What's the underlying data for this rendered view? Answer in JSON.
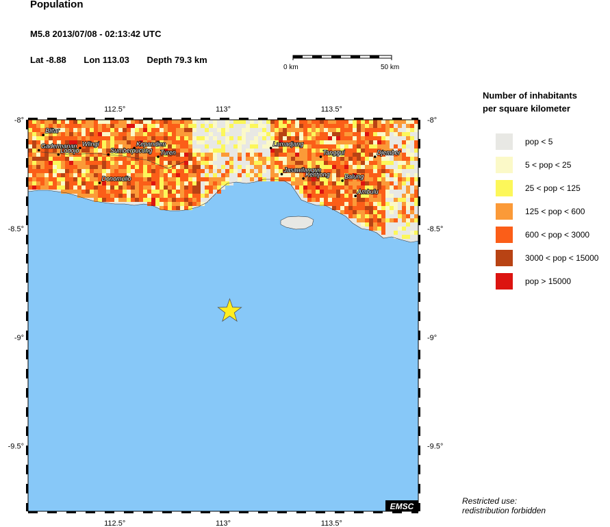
{
  "header": {
    "title": "Population",
    "event": "M5.8  2013/07/08 - 02:13:42 UTC",
    "lat": "Lat -8.88",
    "lon": "Lon 113.03",
    "depth": "Depth  79.3 km"
  },
  "scale_bar": {
    "left_label": "0 km",
    "right_label": "50 km"
  },
  "map": {
    "lon_ticks": [
      "112.5°",
      "113°",
      "113.5°"
    ],
    "lat_ticks": [
      "-8°",
      "-8.5°",
      "-9°",
      "-9.5°"
    ],
    "extent": {
      "lon": [
        112.1,
        113.9
      ],
      "lat": [
        -9.8,
        -8.0
      ]
    },
    "epicenter": {
      "lat": -8.88,
      "lon": 113.03
    },
    "cities": [
      {
        "name": "Blitar",
        "lon": 112.17,
        "lat": -8.07
      },
      {
        "name": "Gadermanan",
        "lon": 112.15,
        "lat": -8.14
      },
      {
        "name": "Lodojo",
        "lon": 112.24,
        "lat": -8.16
      },
      {
        "name": "Wlingi",
        "lon": 112.34,
        "lat": -8.13
      },
      {
        "name": "Sumberpucung",
        "lon": 112.47,
        "lat": -8.16
      },
      {
        "name": "Kepandien",
        "lon": 112.59,
        "lat": -8.13
      },
      {
        "name": "Turen",
        "lon": 112.7,
        "lat": -8.17
      },
      {
        "name": "Donomulio",
        "lon": 112.43,
        "lat": -8.29
      },
      {
        "name": "Lumadjang",
        "lon": 113.22,
        "lat": -8.13
      },
      {
        "name": "Tanggul",
        "lon": 113.45,
        "lat": -8.17
      },
      {
        "name": "Djember",
        "lon": 113.7,
        "lat": -8.17
      },
      {
        "name": "Jasawilangun",
        "lon": 113.27,
        "lat": -8.25
      },
      {
        "name": "Kentjong",
        "lon": 113.37,
        "lat": -8.27
      },
      {
        "name": "Balung",
        "lon": 113.55,
        "lat": -8.28
      },
      {
        "name": "Ambulu",
        "lon": 113.61,
        "lat": -8.35
      }
    ],
    "watermark": "EMSC",
    "colors": {
      "sea": "#87c8f8",
      "land": "#e8e8e4",
      "epicenter": "#ffee20"
    }
  },
  "legend": {
    "title_line1": "Number of inhabitants",
    "title_line2": "per square kilometer",
    "items": [
      {
        "label": "pop < 5",
        "color": "#e8e8e4"
      },
      {
        "label": "5 < pop < 25",
        "color": "#fbf9c8"
      },
      {
        "label": "25 < pop < 125",
        "color": "#fcf75a"
      },
      {
        "label": "125 < pop < 600",
        "color": "#fb9a38"
      },
      {
        "label": "600 < pop < 3000",
        "color": "#fb5e18"
      },
      {
        "label": "3000 < pop < 15000",
        "color": "#b84314"
      },
      {
        "label": "pop > 15000",
        "color": "#dc1410"
      }
    ]
  },
  "restricted": {
    "line1": "Restricted use:",
    "line2": "redistribution forbidden"
  }
}
